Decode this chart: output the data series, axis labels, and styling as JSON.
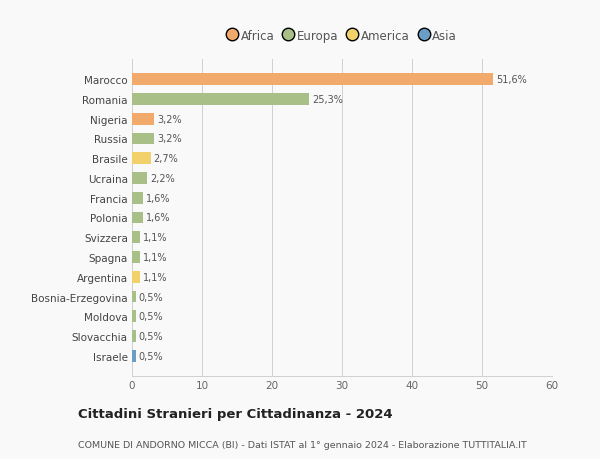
{
  "categories": [
    "Marocco",
    "Romania",
    "Nigeria",
    "Russia",
    "Brasile",
    "Ucraina",
    "Francia",
    "Polonia",
    "Svizzera",
    "Spagna",
    "Argentina",
    "Bosnia-Erzegovina",
    "Moldova",
    "Slovacchia",
    "Israele"
  ],
  "values": [
    51.6,
    25.3,
    3.2,
    3.2,
    2.7,
    2.2,
    1.6,
    1.6,
    1.1,
    1.1,
    1.1,
    0.5,
    0.5,
    0.5,
    0.5
  ],
  "labels": [
    "51,6%",
    "25,3%",
    "3,2%",
    "3,2%",
    "2,7%",
    "2,2%",
    "1,6%",
    "1,6%",
    "1,1%",
    "1,1%",
    "1,1%",
    "0,5%",
    "0,5%",
    "0,5%",
    "0,5%"
  ],
  "colors": [
    "#F2A96C",
    "#A8BF87",
    "#F2A96C",
    "#A8BF87",
    "#F2D06A",
    "#A8BF87",
    "#A8BF87",
    "#A8BF87",
    "#A8BF87",
    "#A8BF87",
    "#F2D06A",
    "#A8BF87",
    "#A8BF87",
    "#A8BF87",
    "#6B9EC7"
  ],
  "legend_labels": [
    "Africa",
    "Europa",
    "America",
    "Asia"
  ],
  "legend_colors": [
    "#F2A96C",
    "#A8BF87",
    "#F2D06A",
    "#6B9EC7"
  ],
  "xlim": [
    0,
    60
  ],
  "xticks": [
    0,
    10,
    20,
    30,
    40,
    50,
    60
  ],
  "title": "Cittadini Stranieri per Cittadinanza - 2024",
  "subtitle": "COMUNE DI ANDORNO MICCA (BI) - Dati ISTAT al 1° gennaio 2024 - Elaborazione TUTTITALIA.IT",
  "bg_color": "#f9f9f9",
  "grid_color": "#d0d0d0",
  "bar_height": 0.6
}
